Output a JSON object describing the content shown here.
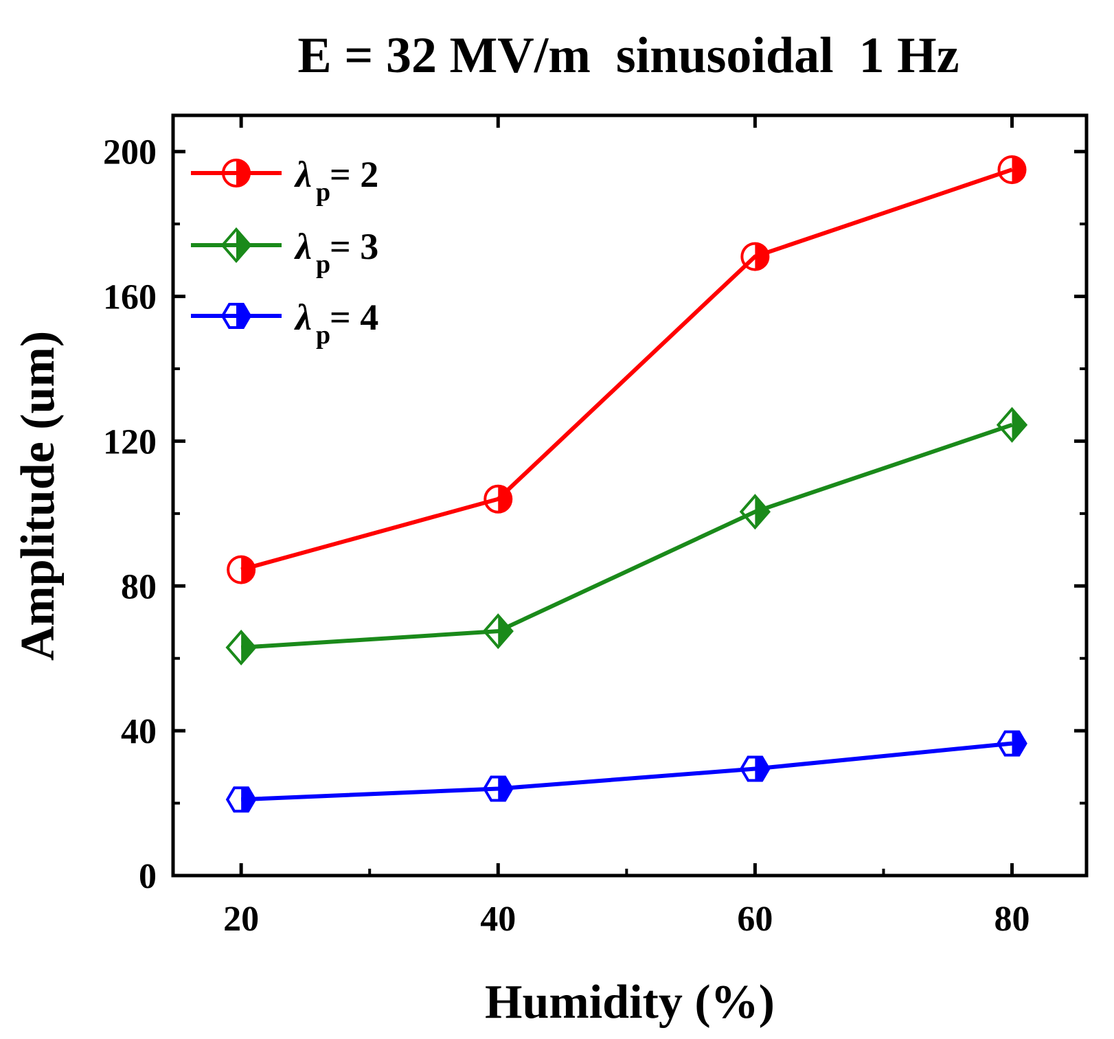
{
  "chart_data": {
    "type": "line",
    "title": "E = 32 MV/m  sinusoidal  1 Hz",
    "xlabel": "Humidity (%)",
    "ylabel": "Amplitude (um)",
    "x": [
      20,
      40,
      60,
      80
    ],
    "xlim": [
      14.7,
      85.8
    ],
    "ylim": [
      0,
      210
    ],
    "xticks": [
      20,
      40,
      60,
      80
    ],
    "yticks": [
      0,
      40,
      80,
      120,
      160,
      200
    ],
    "legend_position": "top-left",
    "series": [
      {
        "name": "λp= 2",
        "symbol": "λ",
        "subscript": "p",
        "label_suffix": "= 2",
        "color": "#ff0000",
        "marker": "circle",
        "values": [
          84.5,
          104,
          171,
          195
        ]
      },
      {
        "name": "λp= 3",
        "symbol": "λ",
        "subscript": "p",
        "label_suffix": "= 3",
        "color": "#1a8a1a",
        "marker": "diamond",
        "values": [
          63,
          67.5,
          100.5,
          124.5
        ]
      },
      {
        "name": "λp= 4",
        "symbol": "λ",
        "subscript": "p",
        "label_suffix": "= 4",
        "color": "#0000ff",
        "marker": "hexagon",
        "values": [
          21,
          24,
          29.5,
          36.5
        ]
      }
    ]
  }
}
